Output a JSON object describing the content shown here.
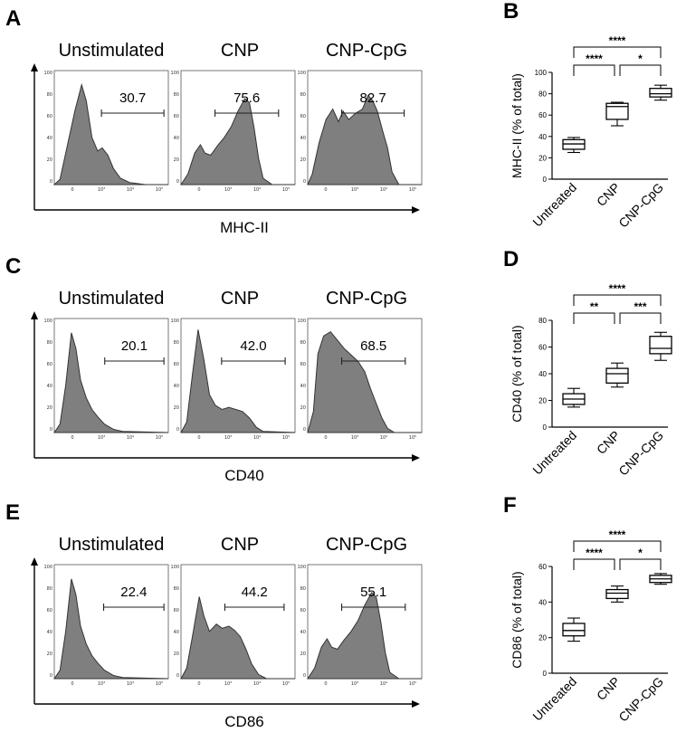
{
  "figure": {
    "rows": [
      {
        "hist_letter": "A",
        "box_letter": "B",
        "marker": "MHC-II",
        "histograms": [
          {
            "label": "Unstimulated",
            "gate_value": "30.7",
            "gate_range_log": [
              2.15,
              5.0
            ],
            "shape": "low-peak-shoulder"
          },
          {
            "label": "CNP",
            "gate_value": "75.6",
            "gate_range_log": [
              1.55,
              4.45
            ],
            "shape": "bimodal-right"
          },
          {
            "label": "CNP-CpG",
            "gate_value": "82.7",
            "gate_range_log": [
              1.55,
              4.4
            ],
            "shape": "broad-right"
          }
        ],
        "hist_ticks": [
          "0",
          "20",
          "40",
          "60",
          "80",
          "100"
        ],
        "hist_xticks": [
          "0",
          "10³",
          "10⁴",
          "10⁵"
        ]
      },
      {
        "hist_letter": "C",
        "box_letter": "D",
        "marker": "CD40",
        "histograms": [
          {
            "label": "Unstimulated",
            "gate_value": "20.1",
            "gate_range_log": [
              2.3,
              5.0
            ],
            "shape": "low-peak"
          },
          {
            "label": "CNP",
            "gate_value": "42.0",
            "gate_range_log": [
              1.85,
              4.75
            ],
            "shape": "low-peak-plateau"
          },
          {
            "label": "CNP-CpG",
            "gate_value": "68.5",
            "gate_range_log": [
              1.55,
              4.45
            ],
            "shape": "broad-plateau"
          }
        ],
        "hist_ticks": [
          "0",
          "20",
          "40",
          "60",
          "80",
          "100"
        ],
        "hist_xticks": [
          "0",
          "10³",
          "10⁴",
          "10⁵"
        ]
      },
      {
        "hist_letter": "E",
        "box_letter": "F",
        "marker": "CD86",
        "histograms": [
          {
            "label": "Unstimulated",
            "gate_value": "22.4",
            "gate_range_log": [
              2.25,
              5.0
            ],
            "shape": "low-peak"
          },
          {
            "label": "CNP",
            "gate_value": "44.2",
            "gate_range_log": [
              2.0,
              4.7
            ],
            "shape": "bimodal-even"
          },
          {
            "label": "CNP-CpG",
            "gate_value": "55.1",
            "gate_range_log": [
              1.55,
              4.45
            ],
            "shape": "bimodal-right"
          }
        ],
        "hist_ticks": [
          "0",
          "20",
          "40",
          "60",
          "80",
          "100"
        ],
        "hist_xticks": [
          "0",
          "10³",
          "10⁴",
          "10⁵"
        ]
      }
    ]
  },
  "chart_data": [
    {
      "panel": "B",
      "type": "box",
      "ylabel": "MHC-II (% of total)",
      "ylim": [
        0,
        100
      ],
      "yticks": [
        0,
        20,
        40,
        60,
        80,
        100
      ],
      "categories": [
        "Untreated",
        "CNP",
        "CNP-CpG"
      ],
      "boxes": [
        {
          "min": 25,
          "q1": 28,
          "median": 33,
          "q3": 37,
          "max": 39
        },
        {
          "min": 50,
          "q1": 56,
          "median": 68,
          "q3": 71,
          "max": 72
        },
        {
          "min": 74,
          "q1": 77,
          "median": 80,
          "q3": 85,
          "max": 88
        }
      ],
      "comparisons": [
        {
          "from": 0,
          "to": 2,
          "label": "****",
          "level": 2
        },
        {
          "from": 0,
          "to": 1,
          "label": "****",
          "level": 1
        },
        {
          "from": 1,
          "to": 2,
          "label": "*",
          "level": 1
        }
      ]
    },
    {
      "panel": "D",
      "type": "box",
      "ylabel": "CD40 (% of total)",
      "ylim": [
        0,
        80
      ],
      "yticks": [
        0,
        20,
        40,
        60,
        80
      ],
      "categories": [
        "Untreated",
        "CNP",
        "CNP-CpG"
      ],
      "boxes": [
        {
          "min": 15,
          "q1": 17,
          "median": 21,
          "q3": 25,
          "max": 29
        },
        {
          "min": 30,
          "q1": 33,
          "median": 40,
          "q3": 44,
          "max": 48
        },
        {
          "min": 50,
          "q1": 55,
          "median": 59,
          "q3": 68,
          "max": 71
        }
      ],
      "comparisons": [
        {
          "from": 0,
          "to": 2,
          "label": "****",
          "level": 2
        },
        {
          "from": 0,
          "to": 1,
          "label": "**",
          "level": 1
        },
        {
          "from": 1,
          "to": 2,
          "label": "***",
          "level": 1
        }
      ]
    },
    {
      "panel": "F",
      "type": "box",
      "ylabel": "CD86 (% of total)",
      "ylim": [
        0,
        60
      ],
      "yticks": [
        0,
        20,
        40,
        60
      ],
      "categories": [
        "Untreated",
        "CNP",
        "CNP-CpG"
      ],
      "boxes": [
        {
          "min": 18,
          "q1": 21,
          "median": 24,
          "q3": 28,
          "max": 31
        },
        {
          "min": 40,
          "q1": 42,
          "median": 45,
          "q3": 47,
          "max": 49
        },
        {
          "min": 50,
          "q1": 51,
          "median": 53,
          "q3": 55,
          "max": 56
        }
      ],
      "comparisons": [
        {
          "from": 0,
          "to": 2,
          "label": "****",
          "level": 2
        },
        {
          "from": 0,
          "to": 1,
          "label": "****",
          "level": 1
        },
        {
          "from": 1,
          "to": 2,
          "label": "*",
          "level": 1
        }
      ]
    }
  ]
}
